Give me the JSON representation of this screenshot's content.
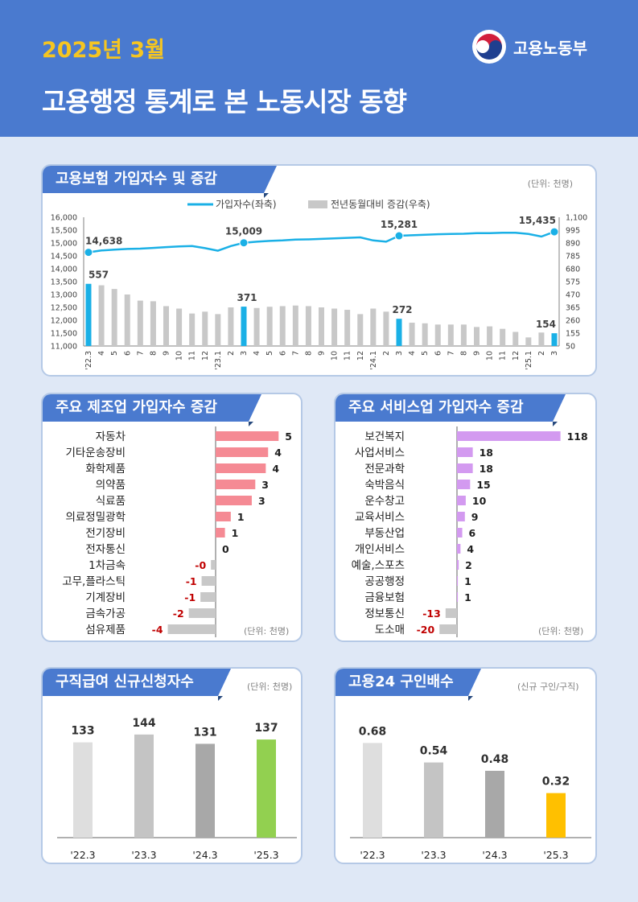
{
  "header": {
    "date": "2025년 3월",
    "title": "고용행정 통계로 본 노동시장 동향",
    "ministry": "고용노동부"
  },
  "colors": {
    "header_bg": "#4a7acf",
    "page_bg": "#dfe8f6",
    "date_text": "#f5c521",
    "line": "#1ab0e6",
    "bar_gray": "#c8c8c8",
    "bar_highlight": "#1ab0e6",
    "manufacturing_bar": "#f58a94",
    "service_bar": "#d39af0",
    "negative_text": "#c00000"
  },
  "insurance": {
    "title": "고용보험 가입자수 및 증감",
    "unit": "(단위: 천명)",
    "legend_line": "가입자수(좌축)",
    "legend_bar": "전년동월대비 증감(우축)"
  },
  "manufacturing": {
    "title": "주요 제조업 가입자수 증감",
    "unit": "(단위: 천명)"
  },
  "services": {
    "title": "주요 서비스업 가입자수 증감",
    "unit": "(단위: 천명)"
  },
  "jobless": {
    "title": "구직급여 신규신청자수",
    "unit": "(단위: 천명)"
  },
  "jobs24": {
    "title": "고용24 구인배수",
    "unit": "(신규 구인/구직)"
  },
  "chart_data": [
    {
      "type": "bar",
      "subtype": "combo-line-bar",
      "title": "고용보험 가입자수 및 증감",
      "x": [
        "'22.3",
        "4",
        "5",
        "6",
        "7",
        "8",
        "9",
        "10",
        "11",
        "12",
        "'23.1",
        "2",
        "3",
        "4",
        "5",
        "6",
        "7",
        "8",
        "9",
        "10",
        "11",
        "12",
        "'24.1",
        "2",
        "3",
        "4",
        "5",
        "6",
        "7",
        "8",
        "9",
        "10",
        "11",
        "12",
        "'25.1",
        "2",
        "3"
      ],
      "series": [
        {
          "name": "가입자수(좌축)",
          "axis": "left",
          "type": "line",
          "values": [
            14638,
            14710,
            14745,
            14770,
            14780,
            14810,
            14840,
            14870,
            14880,
            14800,
            14700,
            14880,
            15009,
            15050,
            15080,
            15100,
            15130,
            15140,
            15160,
            15180,
            15200,
            15220,
            15100,
            15050,
            15281,
            15300,
            15320,
            15340,
            15350,
            15360,
            15380,
            15380,
            15400,
            15400,
            15350,
            15250,
            15435
          ]
        },
        {
          "name": "전년동월대비 증감(우축)",
          "axis": "right",
          "type": "bar",
          "values": [
            557,
            545,
            515,
            470,
            420,
            415,
            375,
            355,
            315,
            330,
            310,
            365,
            371,
            360,
            370,
            375,
            380,
            375,
            365,
            355,
            345,
            310,
            355,
            330,
            272,
            240,
            235,
            225,
            225,
            225,
            205,
            210,
            190,
            165,
            120,
            160,
            154
          ]
        }
      ],
      "highlight_index": [
        0,
        12,
        24,
        36
      ],
      "data_labels": [
        {
          "index": 0,
          "line": "14,638",
          "bar": "557"
        },
        {
          "index": 12,
          "line": "15,009",
          "bar": "371"
        },
        {
          "index": 24,
          "line": "15,281",
          "bar": "272"
        },
        {
          "index": 36,
          "line": "15,435",
          "bar": "154"
        }
      ],
      "y_left_ticks": [
        "11,000",
        "11,500",
        "12,000",
        "12,500",
        "13,000",
        "13,500",
        "14,000",
        "14,500",
        "15,000",
        "15,500",
        "16,000"
      ],
      "y_right_ticks": [
        "50",
        "155",
        "260",
        "365",
        "470",
        "575",
        "680",
        "785",
        "890",
        "995",
        "1,100"
      ],
      "ylim_left": [
        11000,
        16000
      ],
      "ylim_right": [
        50,
        1100
      ],
      "legend_position": "top"
    },
    {
      "type": "bar",
      "orientation": "horizontal",
      "title": "주요 제조업 가입자수 증감",
      "categories": [
        "자동차",
        "기타운송장비",
        "화학제품",
        "의약품",
        "식료품",
        "의료정밀광학",
        "전기장비",
        "전자통신",
        "1차금속",
        "고무,플라스틱",
        "기계장비",
        "금속가공",
        "섬유제품"
      ],
      "values": [
        5.4,
        4.5,
        4.3,
        3.4,
        3.1,
        1.3,
        0.8,
        0.0,
        -0.4,
        -1.2,
        -1.3,
        -2.3,
        -4.1
      ],
      "labels": [
        "5",
        "4",
        "4",
        "3",
        "3",
        "1",
        "1",
        "0",
        "-0",
        "-1",
        "-1",
        "-2",
        "-4"
      ]
    },
    {
      "type": "bar",
      "orientation": "horizontal",
      "title": "주요 서비스업 가입자수 증감",
      "categories": [
        "보건복지",
        "사업서비스",
        "전문과학",
        "숙박음식",
        "운수창고",
        "교육서비스",
        "부동산업",
        "개인서비스",
        "예술,스포츠",
        "공공행정",
        "금융보험",
        "정보통신",
        "도소매"
      ],
      "values": [
        118,
        18,
        18,
        15,
        10,
        9,
        6,
        4,
        2,
        1,
        1,
        -13,
        -20
      ],
      "labels": [
        "118",
        "18",
        "18",
        "15",
        "10",
        "9",
        "6",
        "4",
        "2",
        "1",
        "1",
        "-13",
        "-20"
      ]
    },
    {
      "type": "bar",
      "title": "구직급여 신규신청자수",
      "categories": [
        "'22.3",
        "'23.3",
        "'24.3",
        "'25.3"
      ],
      "values": [
        133,
        144,
        131,
        137
      ],
      "colors": [
        "#dedede",
        "#c4c4c4",
        "#a8a8a8",
        "#92d050"
      ]
    },
    {
      "type": "bar",
      "title": "고용24 구인배수",
      "categories": [
        "'22.3",
        "'23.3",
        "'24.3",
        "'25.3"
      ],
      "values": [
        0.68,
        0.54,
        0.48,
        0.32
      ],
      "colors": [
        "#dedede",
        "#c4c4c4",
        "#a8a8a8",
        "#ffc000"
      ]
    }
  ]
}
